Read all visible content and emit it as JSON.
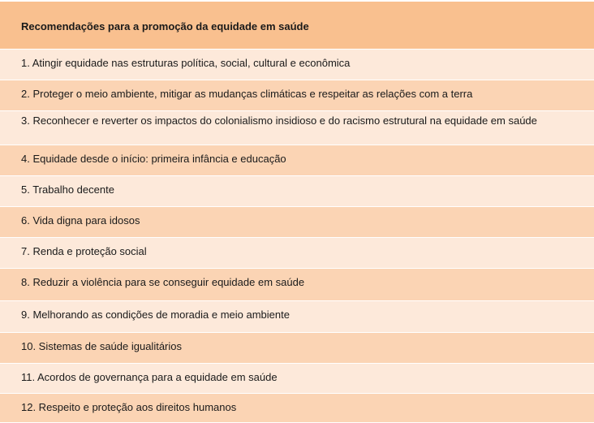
{
  "table": {
    "header": "Recomendações para a promoção da equidade em saúde",
    "rows": [
      "1. Atingir equidade nas estruturas política, social, cultural e econômica",
      "2. Proteger o meio ambiente, mitigar as mudanças climáticas e respeitar as relações com a terra",
      "3. Reconhecer e reverter os impactos do colonialismo insidioso e do racismo estrutural na equidade em saúde",
      "4. Equidade desde o início: primeira infância e educação",
      "5. Trabalho decente",
      "6. Vida digna para idosos",
      "7. Renda e proteção social",
      "8. Reduzir a violência para se conseguir equidade em saúde",
      "9. Melhorando as condições de moradia e meio ambiente",
      "10. Sistemas de saúde igualitários",
      "11. Acordos de governança para a equidade em saúde",
      "12. Respeito e proteção aos direitos humanos"
    ]
  },
  "colors": {
    "header": "#F9C08F",
    "row_light": "#FDE9DA",
    "row_dark": "#FBD4B4"
  }
}
